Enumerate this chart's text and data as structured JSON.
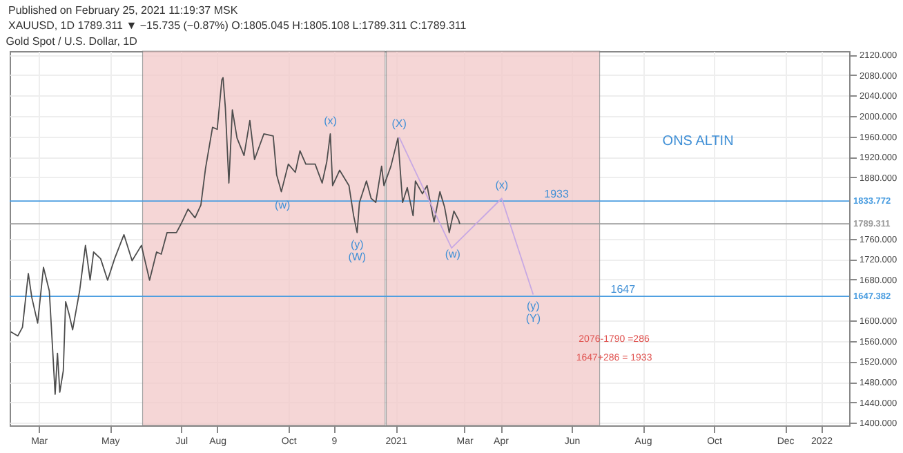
{
  "chart_data": {
    "type": "line",
    "title": "Gold Spot / U.S. Dollar, 1D",
    "xlim": [
      "2020-02-05",
      "2022-01-25"
    ],
    "xticks": [
      {
        "value": "2020-03-01",
        "label": "Mar"
      },
      {
        "value": "2020-05-01",
        "label": "May"
      },
      {
        "value": "2020-07-01",
        "label": "Jul"
      },
      {
        "value": "2020-08-01",
        "label": "Aug"
      },
      {
        "value": "2020-10-01",
        "label": "Oct"
      },
      {
        "value": "2020-11-09",
        "label": "9"
      },
      {
        "value": "2021-01-01",
        "label": "2021"
      },
      {
        "value": "2021-03-01",
        "label": "Mar"
      },
      {
        "value": "2021-04-01",
        "label": "Apr"
      },
      {
        "value": "2021-06-01",
        "label": "Jun"
      },
      {
        "value": "2021-08-01",
        "label": "Aug"
      },
      {
        "value": "2021-10-01",
        "label": "Oct"
      },
      {
        "value": "2021-12-01",
        "label": "Dec"
      },
      {
        "value": "2022-01-01",
        "label": "2022"
      }
    ],
    "ylim": [
      1395,
      2127
    ],
    "yticks": [
      {
        "value": 1400,
        "label": "1400.000"
      },
      {
        "value": 1440,
        "label": "1440.000"
      },
      {
        "value": 1480,
        "label": "1480.000"
      },
      {
        "value": 1520,
        "label": "1520.000"
      },
      {
        "value": 1560,
        "label": "1560.000"
      },
      {
        "value": 1600,
        "label": "1600.000"
      },
      {
        "value": 1680,
        "label": "1680.000"
      },
      {
        "value": 1720,
        "label": "1720.000"
      },
      {
        "value": 1760,
        "label": "1760.000"
      },
      {
        "value": 1880,
        "label": "1880.000"
      },
      {
        "value": 1920,
        "label": "1920.000"
      },
      {
        "value": 1960,
        "label": "1960.000"
      },
      {
        "value": 2000,
        "label": "2000.000"
      },
      {
        "value": 2040,
        "label": "2040.000"
      },
      {
        "value": 2080,
        "label": "2080.000"
      },
      {
        "value": 2120,
        "label": "2120.000"
      }
    ],
    "grid": true,
    "series": [
      {
        "type": "line",
        "color": "#4d4d4d",
        "x": [
          "2020-02-06",
          "2020-02-12",
          "2020-02-16",
          "2020-02-21",
          "2020-02-24",
          "2020-02-29",
          "2020-03-05",
          "2020-03-10",
          "2020-03-12",
          "2020-03-15",
          "2020-03-17",
          "2020-03-19",
          "2020-03-22",
          "2020-03-24",
          "2020-03-27",
          "2020-03-30",
          "2020-04-02",
          "2020-04-05",
          "2020-04-10",
          "2020-04-14",
          "2020-04-17",
          "2020-04-23",
          "2020-04-29",
          "2020-05-05",
          "2020-05-13",
          "2020-05-20",
          "2020-05-28",
          "2020-06-04",
          "2020-06-10",
          "2020-06-14",
          "2020-06-19",
          "2020-06-27",
          "2020-07-01",
          "2020-07-07",
          "2020-07-13",
          "2020-07-18",
          "2020-07-22",
          "2020-07-28",
          "2020-08-01",
          "2020-08-05",
          "2020-08-06",
          "2020-08-08",
          "2020-08-11",
          "2020-08-14",
          "2020-08-18",
          "2020-08-24",
          "2020-08-29",
          "2020-09-02",
          "2020-09-10",
          "2020-09-18",
          "2020-09-21",
          "2020-09-25",
          "2020-10-01",
          "2020-10-07",
          "2020-10-11",
          "2020-10-16",
          "2020-10-24",
          "2020-10-30",
          "2020-11-03",
          "2020-11-06",
          "2020-11-08",
          "2020-11-14",
          "2020-11-22",
          "2020-11-26",
          "2020-11-29",
          "2020-12-01",
          "2020-12-07",
          "2020-12-11",
          "2020-12-15",
          "2020-12-20",
          "2020-12-22",
          "2020-12-28",
          "2021-01-03",
          "2021-01-07",
          "2021-01-11",
          "2021-01-16",
          "2021-01-18",
          "2021-01-24",
          "2021-01-28",
          "2021-02-03",
          "2021-02-08",
          "2021-02-12",
          "2021-02-16",
          "2021-02-20",
          "2021-02-24",
          "2021-02-25"
        ],
        "values": [
          1578,
          1570,
          1587,
          1692,
          1645,
          1595,
          1704,
          1658,
          1578,
          1456,
          1536,
          1460,
          1502,
          1637,
          1612,
          1582,
          1620,
          1658,
          1747,
          1679,
          1734,
          1721,
          1679,
          1721,
          1768,
          1717,
          1747,
          1679,
          1734,
          1730,
          1772,
          1772,
          1789,
          1818,
          1801,
          1826,
          1898,
          1978,
          1974,
          2071,
          2075,
          2016,
          1869,
          2012,
          1957,
          1923,
          1991,
          1915,
          1965,
          1961,
          1885,
          1852,
          1906,
          1890,
          1932,
          1906,
          1906,
          1869,
          1911,
          1965,
          1864,
          1894,
          1864,
          1805,
          1772,
          1831,
          1873,
          1839,
          1831,
          1902,
          1864,
          1902,
          1957,
          1831,
          1860,
          1805,
          1873,
          1848,
          1864,
          1793,
          1852,
          1822,
          1772,
          1814,
          1797,
          1789
        ]
      },
      {
        "type": "line",
        "color": "#c7a8e3",
        "x": [
          "2021-01-04",
          "2021-02-18",
          "2021-04-02",
          "2021-04-29"
        ],
        "values": [
          1959,
          1742,
          1839,
          1651
        ]
      }
    ],
    "bands": [
      {
        "axis": "x",
        "from": "2020-05-29",
        "to": "2020-12-23",
        "color": "#f2c9c9"
      },
      {
        "axis": "x",
        "from": "2020-12-24",
        "to": "2021-06-25",
        "color": "#f2c9c9"
      }
    ],
    "ref_lines": [
      {
        "axis": "y",
        "value": 1833.772,
        "label": "1833.772",
        "color": "#4a9de0"
      },
      {
        "axis": "y",
        "value": 1789.311,
        "label": "1789.311",
        "color": "#9a9a9a"
      },
      {
        "axis": "y",
        "value": 1647.382,
        "label": "1647.382",
        "color": "#4a9de0"
      }
    ],
    "annotations": [
      "Published on February 25, 2021 11:19:37 MSK",
      "XAUUSD, 1D 1789.311 ▼ −15.735 (−0.87%) O:1805.045 H:1805.108 L:1789.311 C:1789.311",
      {
        "text": "(w)",
        "x": "2020-09-26",
        "y": 1825
      },
      {
        "text": "(x)",
        "x": "2020-11-06",
        "y": 1965
      },
      {
        "text": "(y)",
        "x": "2020-11-29",
        "y": 1772
      },
      {
        "text": "(W)",
        "x": "2020-11-29",
        "y": 1772
      },
      {
        "text": "(X)",
        "x": "2021-01-04",
        "y": 1959
      },
      {
        "text": "(w)",
        "x": "2021-02-19",
        "y": 1729
      },
      {
        "text": "(x)",
        "x": "2021-04-02",
        "y": 1839
      },
      {
        "text": "1933",
        "x": "2021-05-19",
        "y": 1846
      },
      {
        "text": "(y)",
        "x": "2021-04-29",
        "y": 1651
      },
      {
        "text": "(Y)",
        "x": "2021-04-29",
        "y": 1651
      },
      {
        "text": "1647",
        "x": "2021-07-15",
        "y": 1660
      },
      "ONS ALTIN",
      "2076-1790 =286",
      "1647+286 = 1933"
    ]
  }
}
